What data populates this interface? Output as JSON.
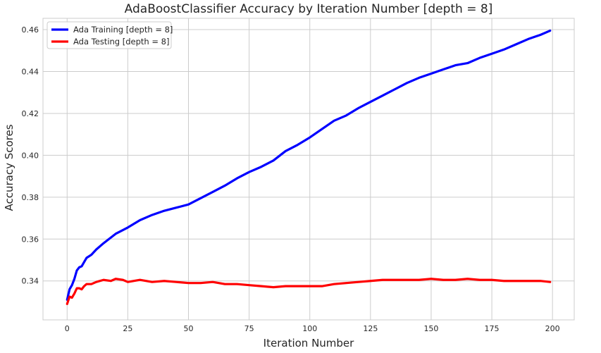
{
  "chart_data": {
    "type": "line",
    "title": "AdaBoostClassifier Accuracy by Iteration Number [depth = 8]",
    "xlabel": "Iteration Number",
    "ylabel": "Accuracy Scores",
    "xlim": [
      -9.95,
      208.95
    ],
    "ylim": [
      0.3214,
      0.4654
    ],
    "xticks": [
      0,
      25,
      50,
      75,
      100,
      125,
      150,
      175,
      200
    ],
    "yticks": [
      0.34,
      0.36,
      0.38,
      0.4,
      0.42,
      0.44,
      0.46
    ],
    "ytick_labels": [
      "0.34",
      "0.36",
      "0.38",
      "0.40",
      "0.42",
      "0.44",
      "0.46"
    ],
    "grid": true,
    "legend_position": "top-left",
    "series": [
      {
        "name": "Ada Training [depth = 8]",
        "color": "#0000ff",
        "points": [
          [
            0,
            0.331
          ],
          [
            1,
            0.336
          ],
          [
            2,
            0.338
          ],
          [
            3,
            0.341
          ],
          [
            4,
            0.345
          ],
          [
            5,
            0.3465
          ],
          [
            6,
            0.347
          ],
          [
            7,
            0.349
          ],
          [
            8,
            0.351
          ],
          [
            10,
            0.3525
          ],
          [
            12,
            0.355
          ],
          [
            15,
            0.358
          ],
          [
            20,
            0.3625
          ],
          [
            25,
            0.3655
          ],
          [
            30,
            0.369
          ],
          [
            35,
            0.3715
          ],
          [
            40,
            0.3735
          ],
          [
            45,
            0.375
          ],
          [
            50,
            0.3765
          ],
          [
            55,
            0.3795
          ],
          [
            60,
            0.3825
          ],
          [
            65,
            0.3855
          ],
          [
            70,
            0.389
          ],
          [
            75,
            0.392
          ],
          [
            80,
            0.3945
          ],
          [
            85,
            0.3975
          ],
          [
            90,
            0.402
          ],
          [
            95,
            0.405
          ],
          [
            100,
            0.4085
          ],
          [
            105,
            0.4125
          ],
          [
            110,
            0.4165
          ],
          [
            115,
            0.419
          ],
          [
            120,
            0.4225
          ],
          [
            125,
            0.4255
          ],
          [
            130,
            0.4285
          ],
          [
            135,
            0.4315
          ],
          [
            140,
            0.4345
          ],
          [
            145,
            0.437
          ],
          [
            150,
            0.439
          ],
          [
            155,
            0.441
          ],
          [
            160,
            0.443
          ],
          [
            165,
            0.444
          ],
          [
            170,
            0.4465
          ],
          [
            175,
            0.4485
          ],
          [
            180,
            0.4505
          ],
          [
            185,
            0.453
          ],
          [
            190,
            0.4555
          ],
          [
            195,
            0.4575
          ],
          [
            199,
            0.4595
          ]
        ]
      },
      {
        "name": "Ada Testing [depth = 8]",
        "color": "#ff0000",
        "points": [
          [
            0,
            0.329
          ],
          [
            1,
            0.3325
          ],
          [
            2,
            0.332
          ],
          [
            3,
            0.334
          ],
          [
            4,
            0.3365
          ],
          [
            5,
            0.3365
          ],
          [
            6,
            0.336
          ],
          [
            7,
            0.3375
          ],
          [
            8,
            0.3385
          ],
          [
            10,
            0.3385
          ],
          [
            12,
            0.3395
          ],
          [
            15,
            0.3405
          ],
          [
            18,
            0.34
          ],
          [
            20,
            0.341
          ],
          [
            23,
            0.3405
          ],
          [
            25,
            0.3395
          ],
          [
            30,
            0.3405
          ],
          [
            35,
            0.3395
          ],
          [
            40,
            0.34
          ],
          [
            45,
            0.3395
          ],
          [
            50,
            0.339
          ],
          [
            55,
            0.339
          ],
          [
            60,
            0.3395
          ],
          [
            65,
            0.3385
          ],
          [
            70,
            0.3385
          ],
          [
            75,
            0.338
          ],
          [
            80,
            0.3375
          ],
          [
            85,
            0.337
          ],
          [
            90,
            0.3375
          ],
          [
            95,
            0.3375
          ],
          [
            100,
            0.3375
          ],
          [
            105,
            0.3375
          ],
          [
            110,
            0.3385
          ],
          [
            115,
            0.339
          ],
          [
            120,
            0.3395
          ],
          [
            125,
            0.34
          ],
          [
            130,
            0.3405
          ],
          [
            135,
            0.3405
          ],
          [
            140,
            0.3405
          ],
          [
            145,
            0.3405
          ],
          [
            150,
            0.341
          ],
          [
            155,
            0.3405
          ],
          [
            160,
            0.3405
          ],
          [
            165,
            0.341
          ],
          [
            170,
            0.3405
          ],
          [
            175,
            0.3405
          ],
          [
            180,
            0.34
          ],
          [
            185,
            0.34
          ],
          [
            190,
            0.34
          ],
          [
            195,
            0.34
          ],
          [
            199,
            0.3395
          ]
        ]
      }
    ]
  }
}
